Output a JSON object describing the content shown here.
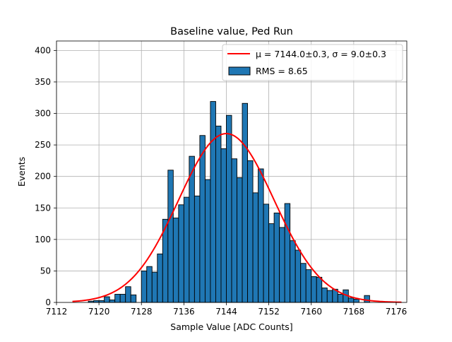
{
  "chart_data": {
    "type": "bar",
    "title": "Baseline value, Ped Run",
    "xlabel": "Sample Value [ADC Counts]",
    "ylabel": "Events",
    "xlim": [
      7112,
      7178
    ],
    "ylim": [
      0,
      415
    ],
    "xticks": [
      7112,
      7120,
      7128,
      7136,
      7144,
      7152,
      7160,
      7168,
      7176
    ],
    "yticks": [
      0,
      50,
      100,
      150,
      200,
      250,
      300,
      350,
      400
    ],
    "grid": true,
    "legend_position": "top-right",
    "bin_width": 1,
    "bins_start": [
      7115,
      7116,
      7117,
      7118,
      7119,
      7120,
      7121,
      7122,
      7123,
      7124,
      7125,
      7126,
      7127,
      7128,
      7129,
      7130,
      7131,
      7132,
      7133,
      7134,
      7135,
      7136,
      7137,
      7138,
      7139,
      7140,
      7141,
      7142,
      7143,
      7144,
      7145,
      7146,
      7147,
      7148,
      7149,
      7150,
      7151,
      7152,
      7153,
      7154,
      7155,
      7156,
      7157,
      7158,
      7159,
      7160,
      7161,
      7162,
      7163,
      7164,
      7165,
      7166,
      7167,
      7168,
      7169,
      7170,
      7171,
      7172,
      7173,
      7174,
      7175,
      7176
    ],
    "counts": [
      0,
      0,
      0,
      2,
      3,
      3,
      9,
      4,
      13,
      13,
      25,
      12,
      0,
      50,
      57,
      48,
      77,
      132,
      210,
      134,
      155,
      167,
      232,
      169,
      265,
      195,
      319,
      280,
      244,
      297,
      228,
      198,
      316,
      225,
      174,
      212,
      156,
      125,
      142,
      119,
      157,
      98,
      83,
      62,
      52,
      41,
      40,
      23,
      19,
      21,
      13,
      20,
      7,
      5,
      0,
      11,
      0,
      0,
      0,
      0,
      0,
      0
    ],
    "series": [
      {
        "name": "RMS = 8.65",
        "kind": "histogram",
        "color": "#1f77b4",
        "edgecolor": "#000000"
      },
      {
        "name": "μ = 7144.0±0.3, σ = 9.0±0.3",
        "kind": "gaussian-fit",
        "color": "#ff0000",
        "mu": 7144.0,
        "sigma": 9.0,
        "amplitude": 268,
        "x_range": [
          7115,
          7177
        ]
      }
    ]
  }
}
